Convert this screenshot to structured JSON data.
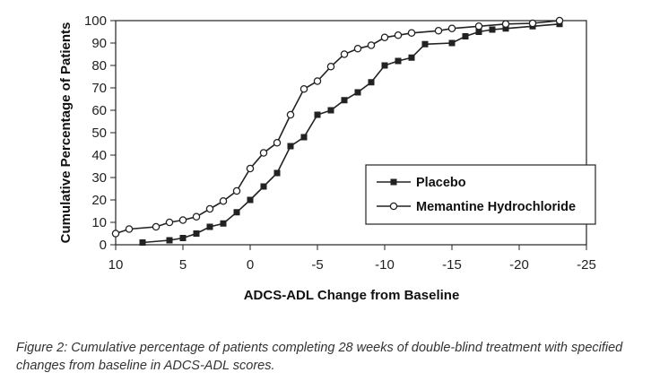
{
  "chart_data": {
    "type": "line",
    "title": "",
    "xlabel": "ADCS-ADL Change from Baseline",
    "ylabel": "Cumulative Percentage of Patients",
    "xlim": [
      10,
      -25
    ],
    "ylim": [
      0,
      100
    ],
    "x_ticks": [
      10,
      5,
      0,
      -5,
      -10,
      -15,
      -20,
      -25
    ],
    "x_tick_labels": [
      "10",
      "5",
      "0",
      "-5",
      "-10",
      "-15",
      "-20",
      "-25"
    ],
    "y_ticks": [
      0,
      10,
      20,
      30,
      40,
      50,
      60,
      70,
      80,
      90,
      100
    ],
    "y_tick_labels": [
      "0",
      "10",
      "20",
      "30",
      "40",
      "50",
      "60",
      "70",
      "80",
      "90",
      "100"
    ],
    "grid": false,
    "legend_position": "right",
    "series": [
      {
        "name": "Placebo",
        "marker": "filled-square",
        "color": "#222222",
        "x": [
          8,
          6,
          5,
          4,
          3,
          2,
          1,
          0,
          -1,
          -2,
          -3,
          -4,
          -5,
          -6,
          -7,
          -8,
          -9,
          -10,
          -11,
          -12,
          -13,
          -15,
          -16,
          -17,
          -18,
          -19,
          -21,
          -23
        ],
        "y": [
          1,
          2,
          3,
          5,
          8,
          9.5,
          14.5,
          20,
          26,
          32,
          44,
          48,
          58,
          60,
          64.5,
          68,
          72.5,
          80,
          82,
          83.5,
          89.5,
          90,
          93,
          95,
          96,
          96.5,
          97.5,
          98.5
        ]
      },
      {
        "name": "Memantine Hydrochloride",
        "marker": "open-circle",
        "color": "#222222",
        "x": [
          10,
          9,
          7,
          6,
          5,
          4,
          3,
          2,
          1,
          0,
          -1,
          -2,
          -3,
          -4,
          -5,
          -6,
          -7,
          -8,
          -9,
          -10,
          -11,
          -12,
          -14,
          -15,
          -17,
          -19,
          -21,
          -23
        ],
        "y": [
          5,
          7,
          8,
          10,
          11,
          12.5,
          16,
          19.5,
          24,
          34,
          41,
          45.5,
          58,
          69.5,
          73,
          79.5,
          85,
          87.5,
          89,
          92.5,
          93.5,
          94.5,
          95.5,
          96.5,
          97.5,
          98.5,
          98.8,
          100
        ]
      }
    ]
  },
  "caption": "Figure 2: Cumulative percentage of patients completing 28 weeks of double-blind treatment with specified changes from baseline in ADCS-ADL scores."
}
